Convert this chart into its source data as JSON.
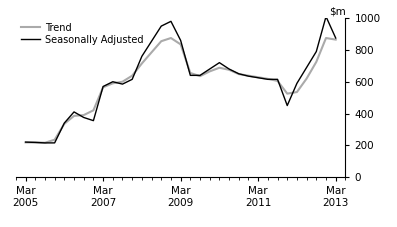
{
  "seasonally_adjusted": {
    "x": [
      2005.25,
      2005.5,
      2005.75,
      2006.0,
      2006.25,
      2006.5,
      2006.75,
      2007.0,
      2007.25,
      2007.5,
      2007.75,
      2008.0,
      2008.25,
      2008.5,
      2008.75,
      2009.0,
      2009.25,
      2009.5,
      2009.75,
      2010.0,
      2010.25,
      2010.5,
      2010.75,
      2011.0,
      2011.25,
      2011.5,
      2011.75,
      2012.0,
      2012.25,
      2012.5,
      2012.75,
      2013.0,
      2013.25
    ],
    "y": [
      220,
      218,
      215,
      215,
      340,
      410,
      375,
      355,
      570,
      600,
      585,
      615,
      760,
      855,
      950,
      980,
      860,
      640,
      640,
      680,
      720,
      680,
      650,
      635,
      625,
      615,
      615,
      450,
      590,
      690,
      790,
      1010,
      875
    ]
  },
  "trend": {
    "x": [
      2005.25,
      2005.5,
      2005.75,
      2006.0,
      2006.25,
      2006.5,
      2006.75,
      2007.0,
      2007.25,
      2007.5,
      2007.75,
      2008.0,
      2008.25,
      2008.5,
      2008.75,
      2009.0,
      2009.25,
      2009.5,
      2009.75,
      2010.0,
      2010.25,
      2010.5,
      2010.75,
      2011.0,
      2011.25,
      2011.5,
      2011.75,
      2012.0,
      2012.25,
      2012.5,
      2012.75,
      2013.0,
      2013.25
    ],
    "y": [
      218,
      218,
      216,
      235,
      335,
      385,
      390,
      420,
      565,
      590,
      600,
      638,
      715,
      785,
      855,
      875,
      835,
      655,
      635,
      665,
      688,
      675,
      648,
      638,
      628,
      618,
      605,
      525,
      535,
      620,
      725,
      875,
      865
    ]
  },
  "sa_color": "#000000",
  "trend_color": "#aaaaaa",
  "ylim": [
    0,
    1000
  ],
  "yticks": [
    0,
    200,
    400,
    600,
    800,
    1000
  ],
  "xlim": [
    2005.0,
    2013.5
  ],
  "xtick_positions": [
    2005.25,
    2007.25,
    2009.25,
    2011.25,
    2013.25
  ],
  "xtick_labels": [
    "Mar\n2005",
    "Mar\n2007",
    "Mar\n2009",
    "Mar\n2011",
    "Mar\n2013"
  ],
  "legend_labels": [
    "Seasonally Adjusted",
    "Trend"
  ],
  "sa_linewidth": 1.0,
  "trend_linewidth": 1.5
}
